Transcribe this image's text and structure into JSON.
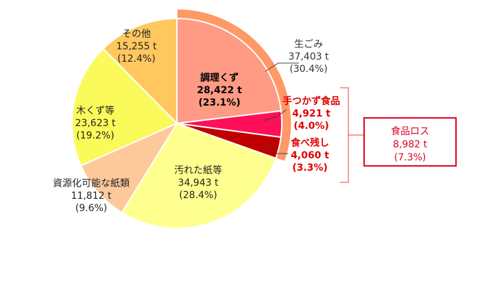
{
  "chart_data": {
    "type": "pie",
    "unit": "t",
    "slices": [
      {
        "label": "調理くず",
        "value_text": "28,422 t",
        "pct_text": "(23.1%)",
        "value": 28422,
        "percent": 23.1,
        "color": "#FF9B85"
      },
      {
        "label": "手つかず食品",
        "value_text": "4,921 t",
        "pct_text": "(4.0%)",
        "value": 4921,
        "percent": 4.0,
        "color": "#FF0F5A"
      },
      {
        "label": "食べ残し",
        "value_text": "4,060 t",
        "pct_text": "(3.3%)",
        "value": 4060,
        "percent": 3.3,
        "color": "#C00000"
      },
      {
        "label": "汚れた紙等",
        "value_text": "34,943 t",
        "pct_text": "(28.4%)",
        "value": 34943,
        "percent": 28.4,
        "color": "#FFFF8F"
      },
      {
        "label": "資源化可能な紙類",
        "value_text": "11,812 t",
        "pct_text": "(9.6%)",
        "value": 11812,
        "percent": 9.6,
        "color": "#FDC99B"
      },
      {
        "label": "木くず等",
        "value_text": "23,623 t",
        "pct_text": "(19.2%)",
        "value": 23623,
        "percent": 19.2,
        "color": "#FAFA5A"
      },
      {
        "label": "その他",
        "value_text": "15,255 t",
        "pct_text": "(12.4%)",
        "value": 15255,
        "percent": 12.4,
        "color": "#FFC85F"
      }
    ],
    "outer_group": {
      "label": "生ごみ",
      "value_text": "37,403 t",
      "pct_text": "(30.4%)",
      "value": 37403,
      "percent": 30.4,
      "color": "#FF9966"
    },
    "bracket_group": {
      "label": "食品ロス",
      "value_text": "8,982 t",
      "pct_text": "(7.3%)",
      "value": 8982,
      "percent": 7.3,
      "color": "#E00020"
    }
  }
}
